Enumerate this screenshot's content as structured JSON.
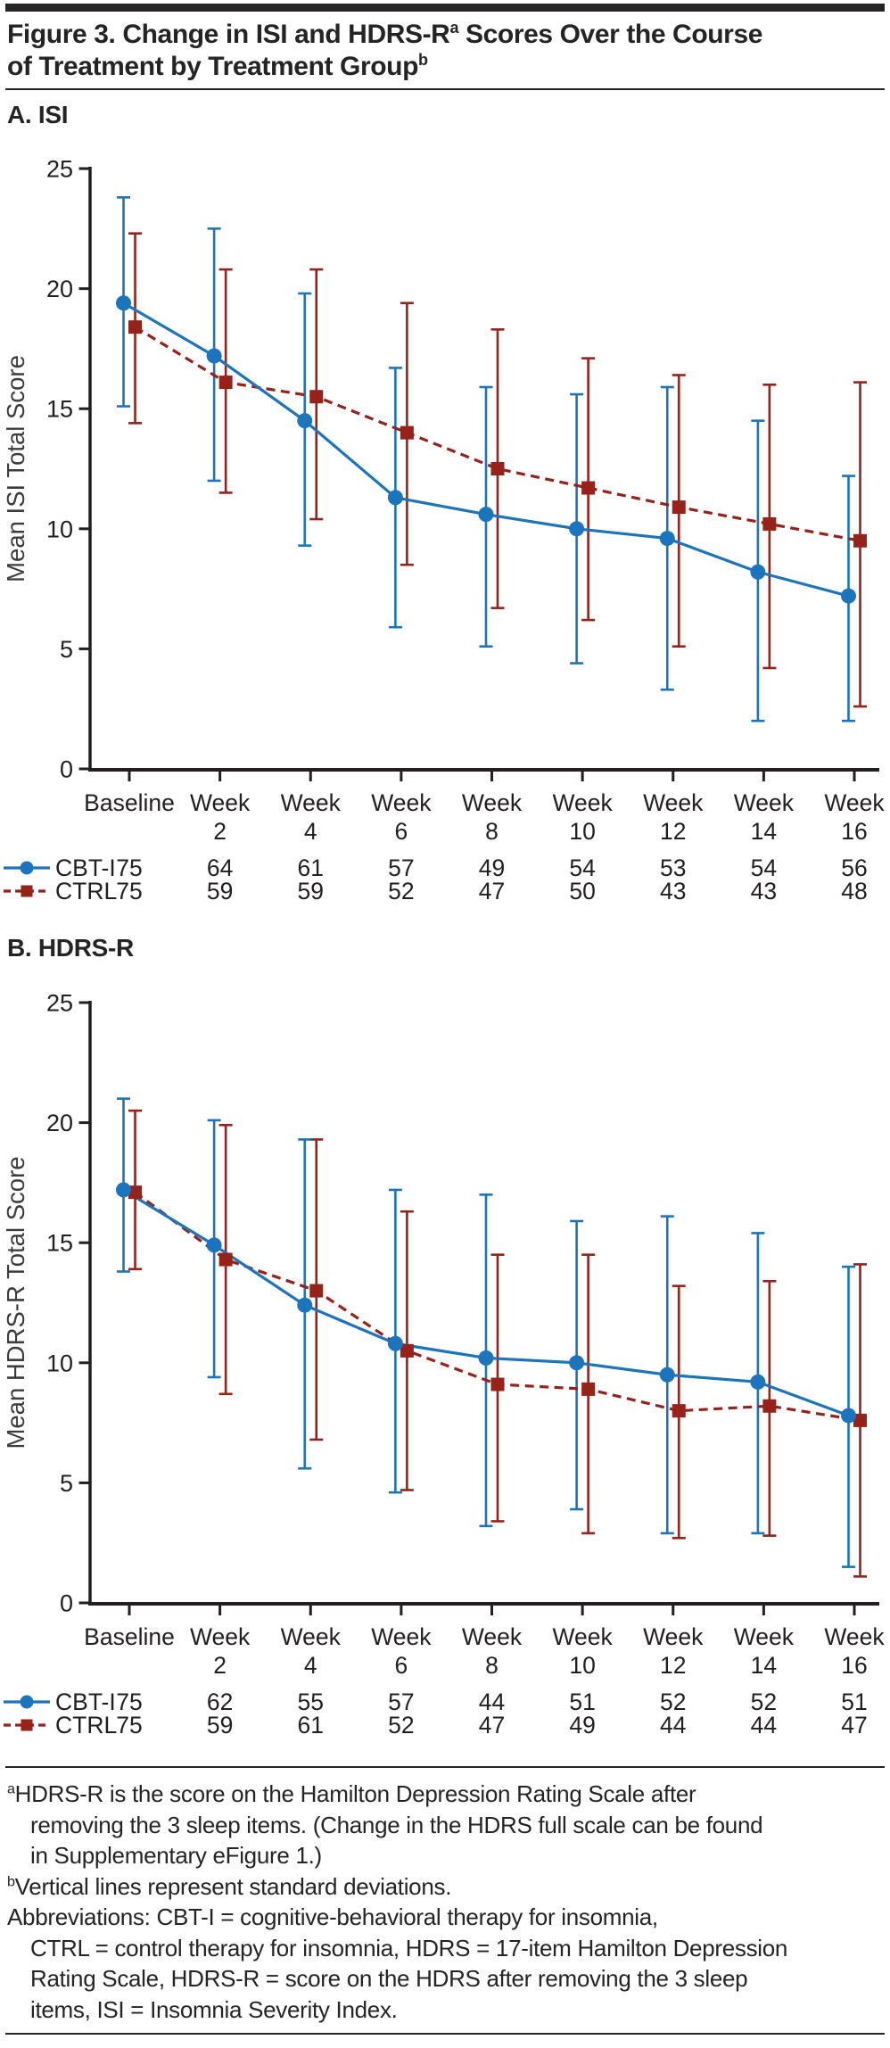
{
  "title": {
    "lines": [
      [
        {
          "t": "Figure 3. Change in ISI and HDRS-R"
        },
        {
          "t": "a",
          "sup": true
        },
        {
          "t": " Scores Over the Course",
          "sup": false
        }
      ],
      [
        {
          "t": "of Treatment by Treatment Group"
        },
        {
          "t": "b",
          "sup": true
        }
      ]
    ]
  },
  "chart_data": [
    {
      "type": "line",
      "panel_label": "A. ISI",
      "ylabel": "Mean ISI Total Score",
      "xlabel": "",
      "ylim": [
        0,
        25
      ],
      "yticks": [
        0,
        5,
        10,
        15,
        20,
        25
      ],
      "grid": false,
      "legend_position": "bottom-left",
      "error_bars": "standard deviations",
      "categories": [
        [
          "Baseline"
        ],
        [
          "Week",
          "2"
        ],
        [
          "Week",
          "4"
        ],
        [
          "Week",
          "6"
        ],
        [
          "Week",
          "8"
        ],
        [
          "Week",
          "10"
        ],
        [
          "Week",
          "12"
        ],
        [
          "Week",
          "14"
        ],
        [
          "Week",
          "16"
        ]
      ],
      "series": [
        {
          "name": "CBT-I",
          "color": "#1C75BC",
          "marker": "circle",
          "line_style": "solid",
          "means": [
            19.4,
            17.2,
            14.5,
            11.3,
            10.6,
            10.0,
            9.6,
            8.2,
            7.2
          ],
          "sd_upper": [
            23.8,
            22.5,
            19.8,
            16.7,
            15.9,
            15.6,
            15.9,
            14.5,
            12.2
          ],
          "sd_lower": [
            15.1,
            12.0,
            9.3,
            5.9,
            5.1,
            4.4,
            3.3,
            2.0,
            2.0
          ],
          "n": [
            75,
            64,
            61,
            57,
            49,
            54,
            53,
            54,
            56
          ]
        },
        {
          "name": "CTRL",
          "color": "#96221A",
          "marker": "square",
          "line_style": "dashed",
          "means": [
            18.4,
            16.1,
            15.5,
            14.0,
            12.5,
            11.7,
            10.9,
            10.2,
            9.5
          ],
          "sd_upper": [
            22.3,
            20.8,
            20.8,
            19.4,
            18.3,
            17.1,
            16.4,
            16.0,
            16.1
          ],
          "sd_lower": [
            14.4,
            11.5,
            10.4,
            8.5,
            6.7,
            6.2,
            5.1,
            4.2,
            2.6
          ],
          "n": [
            75,
            59,
            59,
            52,
            47,
            50,
            43,
            43,
            48
          ]
        }
      ]
    },
    {
      "type": "line",
      "panel_label": "B. HDRS-R",
      "ylabel": "Mean HDRS-R Total Score",
      "xlabel": "",
      "ylim": [
        0,
        25
      ],
      "yticks": [
        0,
        5,
        10,
        15,
        20,
        25
      ],
      "grid": false,
      "legend_position": "bottom-left",
      "error_bars": "standard deviations",
      "categories": [
        [
          "Baseline"
        ],
        [
          "Week",
          "2"
        ],
        [
          "Week",
          "4"
        ],
        [
          "Week",
          "6"
        ],
        [
          "Week",
          "8"
        ],
        [
          "Week",
          "10"
        ],
        [
          "Week",
          "12"
        ],
        [
          "Week",
          "14"
        ],
        [
          "Week",
          "16"
        ]
      ],
      "series": [
        {
          "name": "CBT-I",
          "color": "#1C75BC",
          "marker": "circle",
          "line_style": "solid",
          "means": [
            17.2,
            14.9,
            12.4,
            10.8,
            10.2,
            10.0,
            9.5,
            9.2,
            7.8
          ],
          "sd_upper": [
            21.0,
            20.1,
            19.3,
            17.2,
            17.0,
            15.9,
            16.1,
            15.4,
            14.0
          ],
          "sd_lower": [
            13.8,
            9.4,
            5.6,
            4.6,
            3.2,
            3.9,
            2.9,
            2.9,
            1.5
          ],
          "n": [
            75,
            62,
            55,
            57,
            44,
            51,
            52,
            52,
            51
          ]
        },
        {
          "name": "CTRL",
          "color": "#96221A",
          "marker": "square",
          "line_style": "dashed",
          "means": [
            17.1,
            14.3,
            13.0,
            10.5,
            9.1,
            8.9,
            8.0,
            8.2,
            7.6
          ],
          "sd_upper": [
            20.5,
            19.9,
            19.3,
            16.3,
            14.5,
            14.5,
            13.2,
            13.4,
            14.1
          ],
          "sd_lower": [
            13.9,
            8.7,
            6.8,
            4.7,
            3.4,
            2.9,
            2.7,
            2.8,
            1.1
          ],
          "n": [
            75,
            59,
            61,
            52,
            47,
            49,
            44,
            44,
            47
          ]
        }
      ]
    }
  ],
  "footnotes": [
    {
      "sup": "a",
      "lines": [
        "HDRS-R is the score on the Hamilton Depression Rating Scale after",
        "removing the 3 sleep items. (Change in the HDRS full scale can be found",
        "in Supplementary eFigure 1.)"
      ]
    },
    {
      "sup": "b",
      "lines": [
        "Vertical lines represent standard deviations."
      ]
    },
    {
      "sup": "",
      "lines": [
        "Abbreviations: CBT-I = cognitive-behavioral therapy for insomnia,",
        "CTRL = control therapy for insomnia, HDRS = 17-item Hamilton Depression",
        "Rating Scale, HDRS-R = score on the HDRS after removing the 3 sleep",
        "items, ISI = Insomnia Severity Index."
      ]
    }
  ],
  "colors": {
    "cbti_blue": "#1C75BC",
    "ctrl_red": "#96221A",
    "ink": "#262324",
    "axis_ink": "#231F20"
  }
}
